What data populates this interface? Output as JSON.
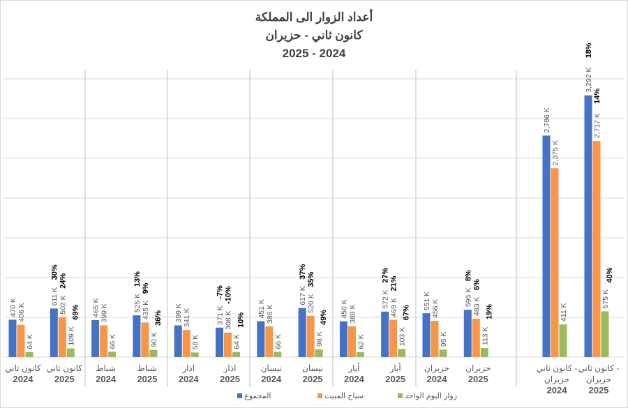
{
  "chart_data": {
    "type": "bar",
    "title": [
      "أعداد الزوار الى المملكة",
      "كانون ثاني - حزيران",
      "2025 - 2024"
    ],
    "ylim": [
      0,
      3500
    ],
    "grid": true,
    "legend_position": "bottom",
    "categories": [
      {
        "label": [
          "كانون ثاني",
          "2024"
        ]
      },
      {
        "label": [
          "كانون ثاني",
          "2025"
        ]
      },
      {
        "label": [
          "شباط",
          "2024"
        ]
      },
      {
        "label": [
          "شباط",
          "2025"
        ]
      },
      {
        "label": [
          "اذار",
          "2024"
        ]
      },
      {
        "label": [
          "اذار",
          "2025"
        ]
      },
      {
        "label": [
          "نيسان",
          "2024"
        ]
      },
      {
        "label": [
          "نيسان",
          "2025"
        ]
      },
      {
        "label": [
          "أيار",
          "2024"
        ]
      },
      {
        "label": [
          "أيار",
          "2025"
        ]
      },
      {
        "label": [
          "حزيران",
          "2024"
        ]
      },
      {
        "label": [
          "حزيران",
          "2025"
        ]
      },
      {
        "label": [
          "كانون ثاني -",
          "حزيران",
          "2024"
        ]
      },
      {
        "label": [
          "كانون ثاني -",
          "حزيران",
          "2025"
        ]
      }
    ],
    "series": [
      {
        "name": "المجموع",
        "color": "#4472c4",
        "values": [
          470,
          611,
          465,
          525,
          399,
          371,
          451,
          617,
          450,
          572,
          551,
          595,
          2786,
          3292
        ],
        "labels": [
          "470 K",
          "611 K",
          "465 K",
          "525 K",
          "399 K",
          "371 K",
          "451 K",
          "617 K",
          "450 K",
          "572 K",
          "551 K",
          "595 K",
          "2,786 K",
          "3,292 K"
        ],
        "change": [
          null,
          "30%",
          null,
          "13%",
          null,
          "-7%",
          null,
          "37%",
          null,
          "27%",
          null,
          "8%",
          null,
          "18%"
        ]
      },
      {
        "name": "سياح المبيت",
        "color": "#f79646",
        "values": [
          406,
          502,
          399,
          435,
          341,
          308,
          386,
          520,
          388,
          469,
          456,
          483,
          2375,
          2717
        ],
        "labels": [
          "406 K",
          "502 K",
          "399 K",
          "435 K",
          "341 K",
          "308 K",
          "386 K",
          "520 K",
          "388 K",
          "469 K",
          "456 K",
          "483 K",
          "2,375 K",
          "2,717 K"
        ],
        "change": [
          null,
          "24%",
          null,
          "9%",
          null,
          "-10%",
          null,
          "35%",
          null,
          "21%",
          null,
          "6%",
          null,
          "14%"
        ]
      },
      {
        "name": "زوار اليوم الواحد",
        "color": "#9bbb59",
        "values": [
          64,
          109,
          66,
          90,
          58,
          64,
          66,
          98,
          62,
          103,
          95,
          113,
          411,
          575
        ],
        "labels": [
          "64 K",
          "109 K",
          "66 K",
          "90 K",
          "58 K",
          "64 K",
          "66 K",
          "98 K",
          "62 K",
          "103 K",
          "95 K",
          "113 K",
          "411 K",
          "575 K"
        ],
        "change": [
          null,
          "69%",
          null,
          "36%",
          null,
          "10%",
          null,
          "49%",
          null,
          "67%",
          null,
          "19%",
          null,
          "40%"
        ]
      }
    ]
  }
}
